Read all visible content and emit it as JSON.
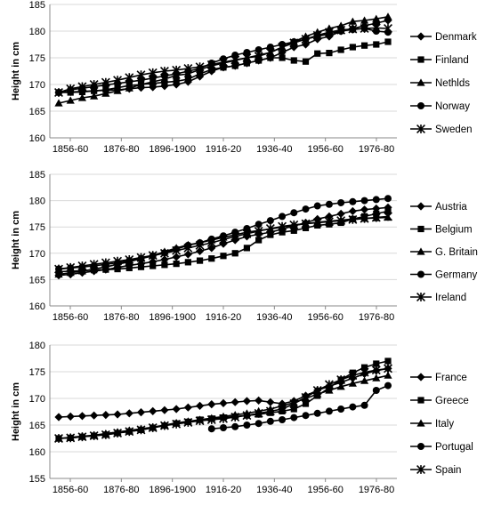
{
  "chart_data": [
    {
      "type": "line",
      "ylabel": "Height in cm",
      "ylim": [
        160,
        185
      ],
      "yticks": [
        160,
        165,
        170,
        175,
        180,
        185
      ],
      "xtick_labels": [
        "1856-60",
        "1876-80",
        "1896-1900",
        "1916-20",
        "1936-40",
        "1956-60",
        "1976-80"
      ],
      "grid": "horizontal",
      "legend": "right",
      "series": [
        {
          "name": "Denmark",
          "marker": "diamond",
          "values": [
            168.5,
            168.6,
            168.7,
            168.8,
            168.9,
            169.0,
            169.2,
            169.4,
            169.5,
            169.7,
            170.0,
            170.5,
            171.5,
            172.5,
            173.2,
            173.5,
            174.0,
            174.5,
            175.0,
            176.0,
            177.0,
            177.5,
            178.5,
            179.0,
            180.0,
            180.5,
            181.0,
            181.5,
            182.0
          ]
        },
        {
          "name": "Finland",
          "marker": "square",
          "values": [
            168.5,
            168.5,
            168.6,
            168.8,
            169.0,
            169.4,
            169.8,
            170.0,
            170.2,
            170.4,
            170.6,
            171.0,
            172.0,
            172.8,
            173.2,
            173.5,
            174.0,
            174.5,
            175.0,
            175.0,
            174.5,
            174.3,
            175.8,
            175.9,
            176.5,
            177.0,
            177.3,
            177.5,
            178.0
          ]
        },
        {
          "name": "Nethlds",
          "marker": "triangle",
          "values": [
            166.5,
            167.0,
            167.5,
            167.8,
            168.3,
            168.8,
            169.3,
            170.0,
            170.5,
            171.0,
            171.7,
            172.0,
            172.8,
            173.5,
            174.0,
            174.5,
            175.0,
            175.5,
            176.0,
            177.0,
            178.0,
            179.0,
            179.8,
            180.5,
            181.0,
            181.8,
            182.0,
            182.3,
            182.7
          ]
        },
        {
          "name": "Norway",
          "marker": "circle",
          "values": [
            168.5,
            169.0,
            169.3,
            169.6,
            169.9,
            170.2,
            170.5,
            170.8,
            171.2,
            171.6,
            172.0,
            172.5,
            173.0,
            174.0,
            174.8,
            175.5,
            176.0,
            176.5,
            177.0,
            177.5,
            178.0,
            178.5,
            179.0,
            179.5,
            180.0,
            180.3,
            180.5,
            180.0,
            179.8
          ]
        },
        {
          "name": "Sweden",
          "marker": "star",
          "values": [
            168.5,
            169.2,
            169.6,
            170.0,
            170.4,
            170.8,
            171.3,
            171.8,
            172.2,
            172.5,
            172.7,
            173.0,
            173.3,
            173.7,
            174.2,
            174.6,
            175.0,
            175.3,
            176.0,
            177.0,
            177.8,
            178.5,
            179.2,
            179.8,
            180.2,
            180.4,
            180.5,
            180.6,
            180.5
          ]
        }
      ]
    },
    {
      "type": "line",
      "ylabel": "Height in cm",
      "ylim": [
        160,
        185
      ],
      "yticks": [
        160,
        165,
        170,
        175,
        180,
        185
      ],
      "xtick_labels": [
        "1856-60",
        "1876-80",
        "1896-1900",
        "1916-20",
        "1936-40",
        "1956-60",
        "1976-80"
      ],
      "grid": "horizontal",
      "legend": "right",
      "series": [
        {
          "name": "Austria",
          "marker": "diamond",
          "values": [
            165.8,
            166.0,
            166.3,
            166.6,
            166.9,
            167.3,
            167.7,
            168.0,
            168.4,
            168.8,
            169.3,
            169.8,
            170.4,
            171.0,
            171.8,
            172.5,
            173.2,
            173.6,
            174.0,
            174.6,
            175.2,
            175.8,
            176.5,
            177.0,
            177.5,
            178.0,
            178.3,
            178.5,
            178.7
          ]
        },
        {
          "name": "Belgium",
          "marker": "square",
          "values": [
            166.5,
            166.6,
            166.7,
            166.8,
            166.9,
            167.0,
            167.2,
            167.4,
            167.6,
            167.8,
            168.0,
            168.3,
            168.6,
            169.0,
            169.5,
            170.0,
            171.0,
            172.5,
            173.5,
            174.0,
            174.3,
            174.8,
            175.3,
            175.5,
            175.8,
            176.5,
            177.0,
            177.5,
            178.0
          ]
        },
        {
          "name": "G. Britain",
          "marker": "triangle",
          "values": [
            166.0,
            166.3,
            166.6,
            167.0,
            167.4,
            167.9,
            168.4,
            169.0,
            169.6,
            170.3,
            171.0,
            171.6,
            172.0,
            172.5,
            173.0,
            173.5,
            174.0,
            174.3,
            174.6,
            175.0,
            175.3,
            175.6,
            175.9,
            176.1,
            176.3,
            176.5,
            176.6,
            176.7,
            176.8
          ]
        },
        {
          "name": "Germany",
          "marker": "circle",
          "values": [
            167.0,
            167.2,
            167.4,
            167.6,
            167.9,
            168.2,
            168.6,
            169.0,
            169.5,
            170.1,
            170.8,
            171.5,
            172.0,
            172.7,
            173.3,
            174.0,
            174.7,
            175.5,
            176.2,
            177.0,
            177.7,
            178.4,
            179.0,
            179.3,
            179.6,
            179.8,
            180.0,
            180.2,
            180.4
          ]
        },
        {
          "name": "Ireland",
          "marker": "star",
          "values": [
            167.0,
            167.3,
            167.6,
            167.9,
            168.2,
            168.5,
            168.8,
            169.2,
            169.6,
            170.0,
            170.5,
            171.0,
            171.5,
            172.0,
            172.6,
            173.2,
            173.7,
            174.2,
            174.7,
            175.1,
            175.4,
            175.6,
            175.8,
            176.0,
            176.2,
            176.4,
            176.6,
            176.8,
            177.0
          ]
        }
      ]
    },
    {
      "type": "line",
      "ylabel": "Height in cm",
      "ylim": [
        155,
        180
      ],
      "yticks": [
        155,
        160,
        165,
        170,
        175,
        180
      ],
      "xtick_labels": [
        "1856-60",
        "1876-80",
        "1896-1900",
        "1916-20",
        "1936-40",
        "1956-60",
        "1976-80"
      ],
      "grid": "horizontal",
      "legend": "right",
      "series": [
        {
          "name": "France",
          "marker": "diamond",
          "values": [
            166.5,
            166.6,
            166.7,
            166.8,
            166.9,
            167.0,
            167.2,
            167.4,
            167.6,
            167.8,
            168.0,
            168.3,
            168.6,
            168.9,
            169.1,
            169.3,
            169.5,
            169.6,
            169.3,
            169.0,
            169.5,
            170.5,
            171.5,
            172.3,
            173.0,
            173.8,
            174.6,
            175.2,
            175.6
          ]
        },
        {
          "name": "Greece",
          "marker": "square",
          "values": [
            162.5,
            162.6,
            162.8,
            163.0,
            163.2,
            163.5,
            163.8,
            164.1,
            164.5,
            164.9,
            165.3,
            165.6,
            166.0,
            166.2,
            166.4,
            166.6,
            166.8,
            167.0,
            167.3,
            167.6,
            168.0,
            169.0,
            170.5,
            172.0,
            173.5,
            174.8,
            175.8,
            176.5,
            177.0
          ]
        },
        {
          "name": "Italy",
          "marker": "triangle",
          "values": [
            162.5,
            162.7,
            162.9,
            163.1,
            163.4,
            163.7,
            164.0,
            164.3,
            164.6,
            165.0,
            165.4,
            165.7,
            166.0,
            166.3,
            166.6,
            166.9,
            167.2,
            167.6,
            168.0,
            168.6,
            169.2,
            170.0,
            170.8,
            171.5,
            172.2,
            172.8,
            173.3,
            173.8,
            174.3
          ]
        },
        {
          "name": "Portugal",
          "marker": "circle",
          "values": [
            null,
            null,
            null,
            null,
            null,
            null,
            null,
            null,
            null,
            null,
            null,
            null,
            null,
            164.3,
            164.5,
            164.7,
            165.0,
            165.3,
            165.7,
            166.0,
            166.4,
            166.8,
            167.2,
            167.6,
            168.0,
            168.4,
            168.7,
            171.5,
            172.4
          ]
        },
        {
          "name": "Spain",
          "marker": "star",
          "values": [
            162.5,
            162.6,
            162.8,
            163.0,
            163.2,
            163.5,
            163.8,
            164.1,
            164.5,
            164.9,
            165.2,
            165.5,
            165.8,
            166.0,
            166.2,
            166.5,
            166.8,
            167.2,
            167.6,
            168.0,
            169.0,
            170.2,
            171.5,
            172.6,
            173.5,
            174.3,
            174.9,
            175.3,
            175.6
          ]
        }
      ]
    }
  ]
}
